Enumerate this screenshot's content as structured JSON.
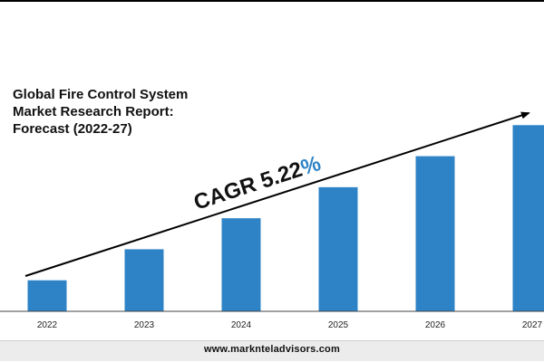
{
  "title_lines": [
    "Global Fire Control System",
    "Market Research Report:",
    "Forecast (2022-27)"
  ],
  "annotation": {
    "text": "CAGR 5.22",
    "percent": "%"
  },
  "footer": {
    "url": "www.marknteladvisors.com"
  },
  "colors": {
    "bar": "#2e83c6",
    "percent": "#2e83c6",
    "axis": "#444444",
    "text": "#111111"
  },
  "chart_data": {
    "type": "bar",
    "categories": [
      "2022",
      "2023",
      "2024",
      "2025",
      "2026",
      "2027"
    ],
    "values": [
      1.0,
      2.0,
      3.0,
      4.0,
      5.0,
      6.0
    ],
    "title": "Global Fire Control System Market Research Report: Forecast (2022-27)",
    "xlabel": "",
    "ylabel": "",
    "ylim": [
      0,
      6.3
    ],
    "grid": false,
    "legend": "none"
  }
}
